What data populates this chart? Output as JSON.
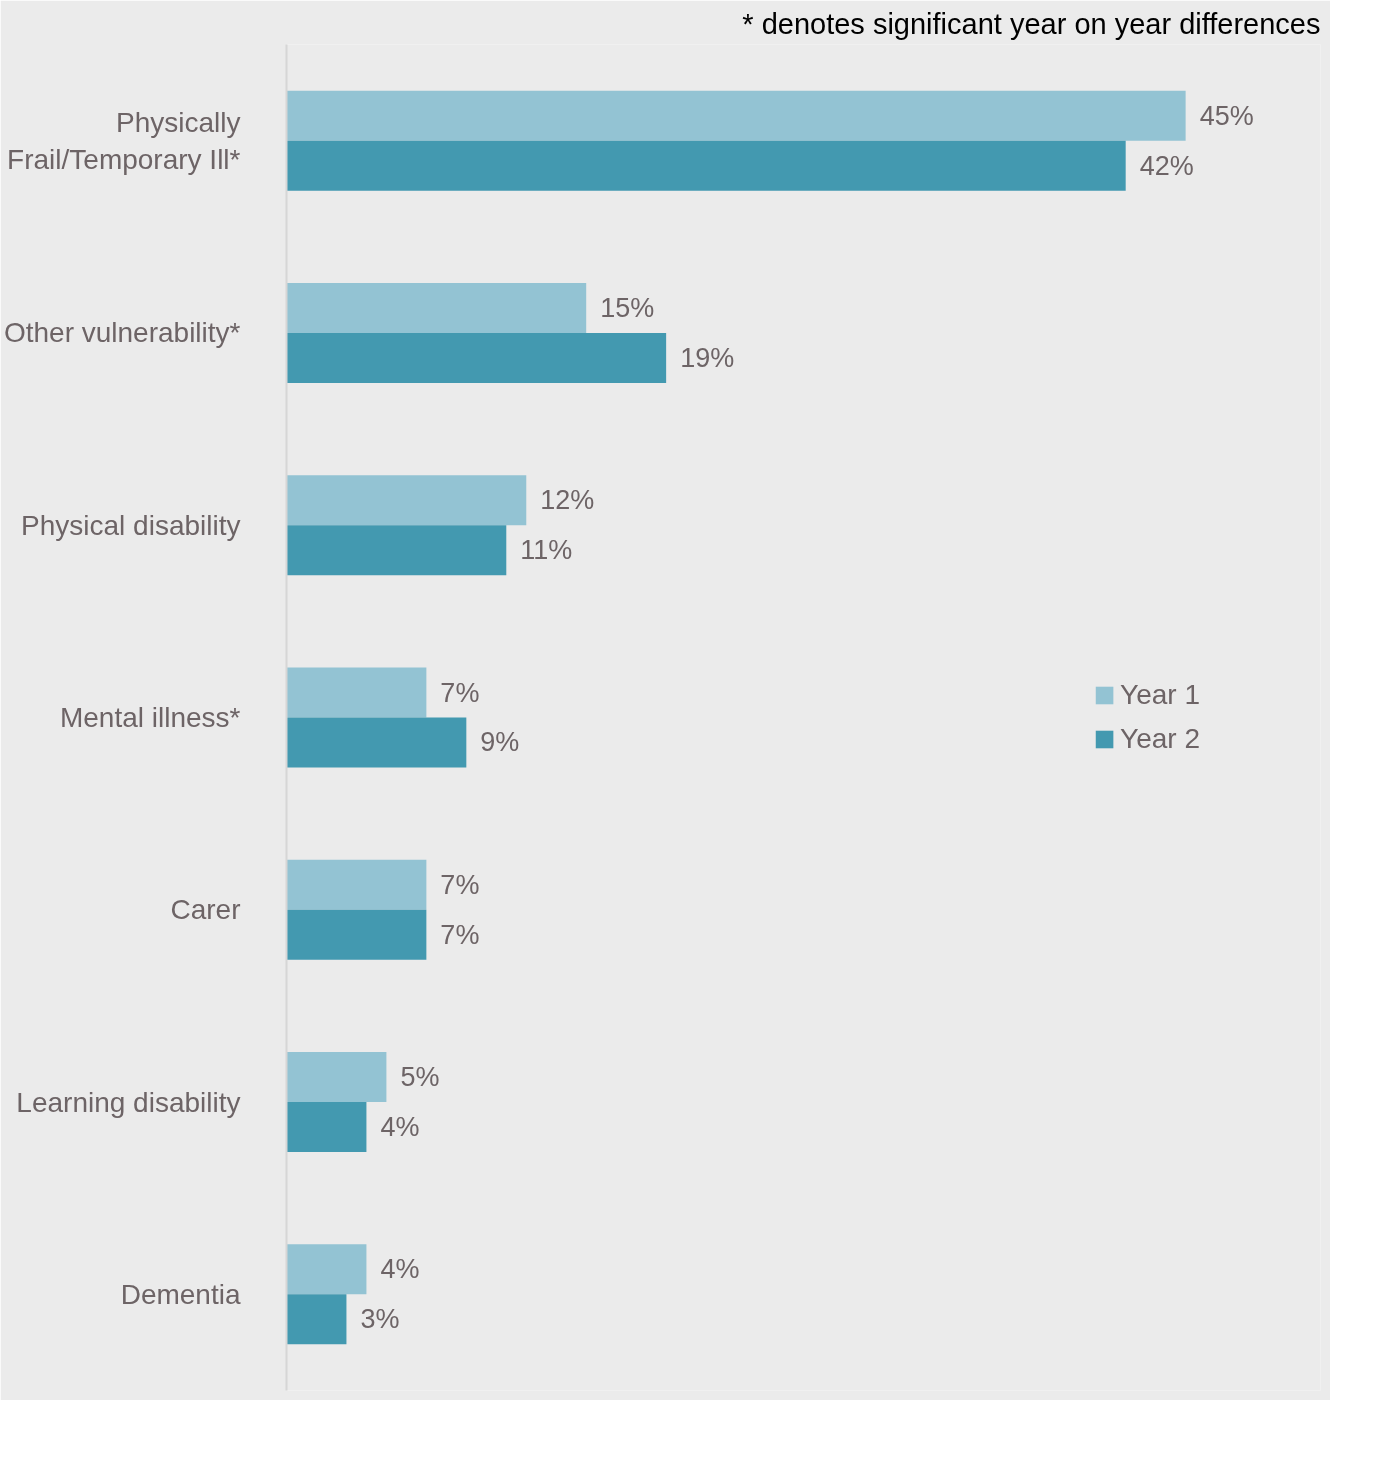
{
  "chart_data": {
    "type": "bar",
    "orientation": "horizontal",
    "categories": [
      "Physically\nFrail/Temporary Ill*",
      "Other vulnerability*",
      "Physical disability",
      "Mental illness*",
      "Carer",
      "Learning disability",
      "Dementia"
    ],
    "series": [
      {
        "name": "Year 1",
        "color": "#93c3d3",
        "values": [
          45,
          15,
          12,
          7,
          7,
          5,
          4
        ],
        "value_labels": [
          "45%",
          "15%",
          "12%",
          "7%",
          "7%",
          "5%",
          "4%"
        ]
      },
      {
        "name": "Year 2",
        "color": "#4399b0",
        "values": [
          42,
          19,
          11,
          9,
          7,
          4,
          3
        ],
        "value_labels": [
          "42%",
          "19%",
          "11%",
          "9%",
          "7%",
          "4%",
          "3%"
        ]
      }
    ],
    "annotations": [
      "* denotes significant year on year differences"
    ],
    "legend": "right",
    "grid": false
  }
}
